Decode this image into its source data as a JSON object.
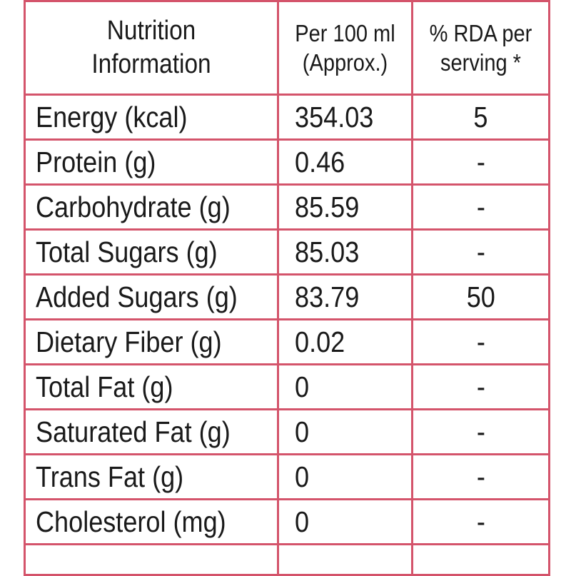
{
  "table": {
    "header": {
      "nutrient_line1": "Nutrition",
      "nutrient_line2": "Information",
      "per100_line1": "Per 100 ml",
      "per100_line2": "(Approx.)",
      "rda_line1": "% RDA per",
      "rda_line2": "serving *"
    },
    "rows": [
      {
        "nutrient": "Energy (kcal)",
        "per_100ml": "354.03",
        "rda": "5"
      },
      {
        "nutrient": "Protein (g)",
        "per_100ml": "0.46",
        "rda": "-"
      },
      {
        "nutrient": "Carbohydrate (g)",
        "per_100ml": "85.59",
        "rda": "-"
      },
      {
        "nutrient": "Total Sugars (g)",
        "per_100ml": "85.03",
        "rda": "-"
      },
      {
        "nutrient": "Added Sugars (g)",
        "per_100ml": "83.79",
        "rda": "50"
      },
      {
        "nutrient": "Dietary Fiber (g)",
        "per_100ml": "0.02",
        "rda": "-"
      },
      {
        "nutrient": "Total Fat (g)",
        "per_100ml": "0",
        "rda": "-"
      },
      {
        "nutrient": "Saturated Fat (g)",
        "per_100ml": "0",
        "rda": "-"
      },
      {
        "nutrient": "Trans Fat (g)",
        "per_100ml": "0",
        "rda": "-"
      },
      {
        "nutrient": "Cholesterol (mg)",
        "per_100ml": "0",
        "rda": "-"
      }
    ]
  },
  "colors": {
    "border": "#d4546b",
    "text": "#1a1a1a",
    "background": "#ffffff"
  }
}
